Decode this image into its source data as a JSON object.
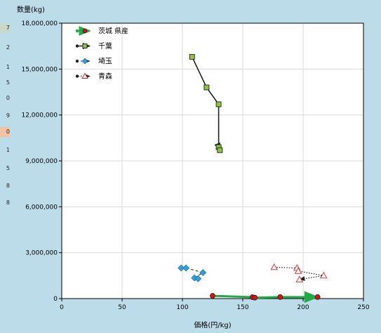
{
  "chart_data": {
    "type": "scatter",
    "title": "",
    "ylabel": "数量(kg)",
    "xlabel": "価格(円/kg)",
    "xlim": [
      0,
      250
    ],
    "ylim": [
      0,
      18000000
    ],
    "x_ticks": [
      0,
      50,
      100,
      150,
      200,
      250
    ],
    "x_tick_labels": [
      "0",
      "50",
      "100",
      "150",
      "200",
      "250"
    ],
    "y_ticks": [
      0,
      3000000,
      6000000,
      9000000,
      12000000,
      15000000,
      18000000
    ],
    "y_tick_labels": [
      "0",
      "3,000,000",
      "6,000,000",
      "9,000,000",
      "12,000,000",
      "15,000,000",
      "18,000,000"
    ],
    "grid": true,
    "legend_position": "top-left",
    "series": [
      {
        "name": "茨城 県産",
        "color": "#22aa44",
        "marker": "circle",
        "marker_fill": "#dd1111",
        "line_style": "solid",
        "line_width": 3,
        "points": [
          [
            125,
            180000
          ],
          [
            158,
            90000
          ],
          [
            160,
            60000
          ],
          [
            181,
            100000
          ],
          [
            212,
            100000
          ]
        ]
      },
      {
        "name": "千葉",
        "color": "#222222",
        "marker": "square",
        "marker_fill": "#8cc63f",
        "line_style": "solid",
        "line_width": 1.6,
        "points": [
          [
            108,
            15800000
          ],
          [
            120,
            13800000
          ],
          [
            130,
            12700000
          ],
          [
            130,
            9900000
          ],
          [
            131,
            9700000
          ]
        ]
      },
      {
        "name": "埼玉",
        "color": "#222222",
        "marker": "diamond",
        "marker_fill": "#2fa0dd",
        "line_style": "dashed",
        "line_width": 1,
        "points": [
          [
            99,
            2000000
          ],
          [
            103,
            2000000
          ],
          [
            117,
            1700000
          ],
          [
            110,
            1350000
          ],
          [
            113,
            1300000
          ]
        ]
      },
      {
        "name": "青森",
        "color": "#222222",
        "marker": "triangle",
        "marker_fill": "#ffffff",
        "marker_stroke": "#dd2222",
        "line_style": "dotted",
        "line_width": 1.2,
        "points": [
          [
            176,
            2050000
          ],
          [
            195,
            2000000
          ],
          [
            196,
            1800000
          ],
          [
            217,
            1500000
          ],
          [
            197,
            1250000
          ]
        ]
      }
    ]
  },
  "side_strip": {
    "cells": [
      "7",
      "2",
      "1",
      "5",
      "0",
      "9",
      "0",
      "1",
      "5",
      "8",
      "8"
    ],
    "cell_colors": [
      "#c9d9c8",
      "#bcdcea",
      "#bcdcea",
      "#bcdcea",
      "#bcdcea",
      "#bcdcea",
      "#f3c2a0",
      "#bcdcea",
      "#bcdcea",
      "#bcdcea",
      "#bcdcea"
    ]
  }
}
